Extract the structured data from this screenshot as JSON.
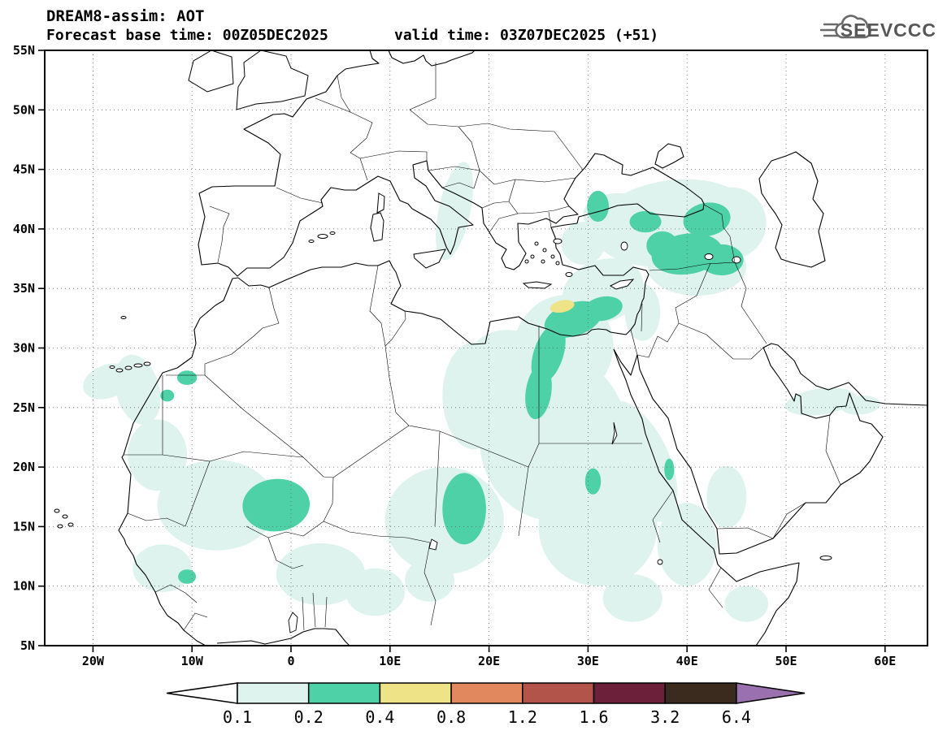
{
  "header": {
    "title": "DREAM8-assim: AOT",
    "subtitle_left": "Forecast base time: 00Z05DEC2025",
    "subtitle_right": "valid time: 03Z07DEC2025 (+51)",
    "logo_text": "SEEVCCC"
  },
  "map": {
    "variable": "AOT",
    "lat_ticks": [
      {
        "label": "55N",
        "deg": 55
      },
      {
        "label": "50N",
        "deg": 50
      },
      {
        "label": "45N",
        "deg": 45
      },
      {
        "label": "40N",
        "deg": 40
      },
      {
        "label": "35N",
        "deg": 35
      },
      {
        "label": "30N",
        "deg": 30
      },
      {
        "label": "25N",
        "deg": 25
      },
      {
        "label": "20N",
        "deg": 20
      },
      {
        "label": "15N",
        "deg": 15
      },
      {
        "label": "10N",
        "deg": 10
      },
      {
        "label": "5N",
        "deg": 5
      }
    ],
    "lon_ticks": [
      {
        "label": "20W",
        "deg": -20
      },
      {
        "label": "10W",
        "deg": -10
      },
      {
        "label": "0",
        "deg": 0
      },
      {
        "label": "10E",
        "deg": 10
      },
      {
        "label": "20E",
        "deg": 20
      },
      {
        "label": "30E",
        "deg": 30
      },
      {
        "label": "40E",
        "deg": 40
      },
      {
        "label": "50E",
        "deg": 50
      },
      {
        "label": "60E",
        "deg": 60
      }
    ],
    "patch_format": "[lon_deg, lat_deg, rx_deg, ry_deg, rotation_deg, level] ; level 1 = AOT 0.1-0.2, level 2 = AOT 0.2-0.4, level 3 = AOT 0.4-0.8",
    "aot_patches": [
      [
        38.5,
        40.5,
        8,
        3.6,
        -8,
        1
      ],
      [
        33,
        41.2,
        3.5,
        1.8,
        0,
        1
      ],
      [
        44.5,
        40.5,
        3.5,
        3,
        0,
        1
      ],
      [
        41,
        36.8,
        5,
        2.4,
        0,
        1
      ],
      [
        29.5,
        38.8,
        2.2,
        1.8,
        0,
        1
      ],
      [
        31.5,
        34.8,
        4.2,
        2.6,
        -20,
        1
      ],
      [
        35.5,
        33,
        1.8,
        2.4,
        0,
        1
      ],
      [
        27.5,
        30,
        5,
        4.5,
        20,
        1
      ],
      [
        26.5,
        22.5,
        7.5,
        7,
        0,
        1
      ],
      [
        31,
        15,
        6,
        5,
        0,
        1
      ],
      [
        22,
        28,
        4.5,
        3.5,
        20,
        1
      ],
      [
        35,
        20.5,
        3.2,
        5.5,
        -25,
        1
      ],
      [
        40,
        13.5,
        3,
        3.5,
        0,
        1
      ],
      [
        44,
        17.5,
        2,
        2.6,
        0,
        1
      ],
      [
        16.5,
        41.5,
        1.6,
        4.2,
        12,
        1
      ],
      [
        18.5,
        26,
        3.2,
        4.5,
        0,
        1
      ],
      [
        15.5,
        15.5,
        6,
        4.5,
        0,
        1
      ],
      [
        14,
        10.5,
        2.5,
        1.8,
        0,
        1
      ],
      [
        3,
        11,
        4.5,
        2.6,
        0,
        1
      ],
      [
        8.5,
        9.5,
        3,
        2,
        0,
        1
      ],
      [
        -7.5,
        16.8,
        6,
        3.8,
        0,
        1
      ],
      [
        -13.5,
        21,
        3,
        3,
        0,
        1
      ],
      [
        -15.5,
        26.5,
        2.2,
        3,
        -15,
        1
      ],
      [
        -18.5,
        27.2,
        2.6,
        1.4,
        -20,
        1
      ],
      [
        -13,
        11.5,
        3,
        2,
        0,
        1
      ],
      [
        53.5,
        25.5,
        3.6,
        1.1,
        -8,
        1
      ],
      [
        57.5,
        25.2,
        2,
        0.8,
        -5,
        1
      ],
      [
        46,
        8.5,
        2.2,
        1.5,
        0,
        1
      ],
      [
        34.5,
        9,
        3,
        2,
        0,
        1
      ],
      [
        40,
        37.9,
        3.6,
        1.7,
        -8,
        2
      ],
      [
        43.5,
        37.4,
        2.2,
        1.3,
        0,
        2
      ],
      [
        37.5,
        38.6,
        1.6,
        1.2,
        0,
        2
      ],
      [
        42,
        40.8,
        2.4,
        1.4,
        -10,
        2
      ],
      [
        35.8,
        40.6,
        1.6,
        0.9,
        0,
        2
      ],
      [
        31,
        41.9,
        1.1,
        1.3,
        0,
        2
      ],
      [
        28.5,
        32.4,
        3,
        1.4,
        -18,
        2
      ],
      [
        31.5,
        33.3,
        2,
        1,
        -12,
        2
      ],
      [
        26,
        29.5,
        1.5,
        2.6,
        18,
        2
      ],
      [
        25,
        26.3,
        1.3,
        2.3,
        8,
        2
      ],
      [
        17.5,
        16.5,
        2.2,
        3,
        0,
        2
      ],
      [
        -1.5,
        16.8,
        3.4,
        2.2,
        -5,
        2
      ],
      [
        -10.5,
        27.5,
        1,
        0.6,
        0,
        2
      ],
      [
        -12.5,
        26,
        0.7,
        0.5,
        0,
        2
      ],
      [
        -10.5,
        10.8,
        0.9,
        0.6,
        0,
        2
      ],
      [
        30.5,
        18.8,
        0.8,
        1.1,
        0,
        2
      ],
      [
        38.2,
        19.8,
        0.5,
        0.9,
        0,
        2
      ],
      [
        27.4,
        33.5,
        1.25,
        0.5,
        -12,
        3
      ]
    ]
  },
  "legend": {
    "values": [
      "0.1",
      "0.2",
      "0.4",
      "0.8",
      "1.2",
      "1.6",
      "3.2",
      "6.4"
    ],
    "colors": [
      "#ffffff",
      "#def3ee",
      "#4fd1a7",
      "#efe388",
      "#e2885e",
      "#b2544a",
      "#6d2039",
      "#3a2b1e",
      "#9a70ae"
    ]
  }
}
